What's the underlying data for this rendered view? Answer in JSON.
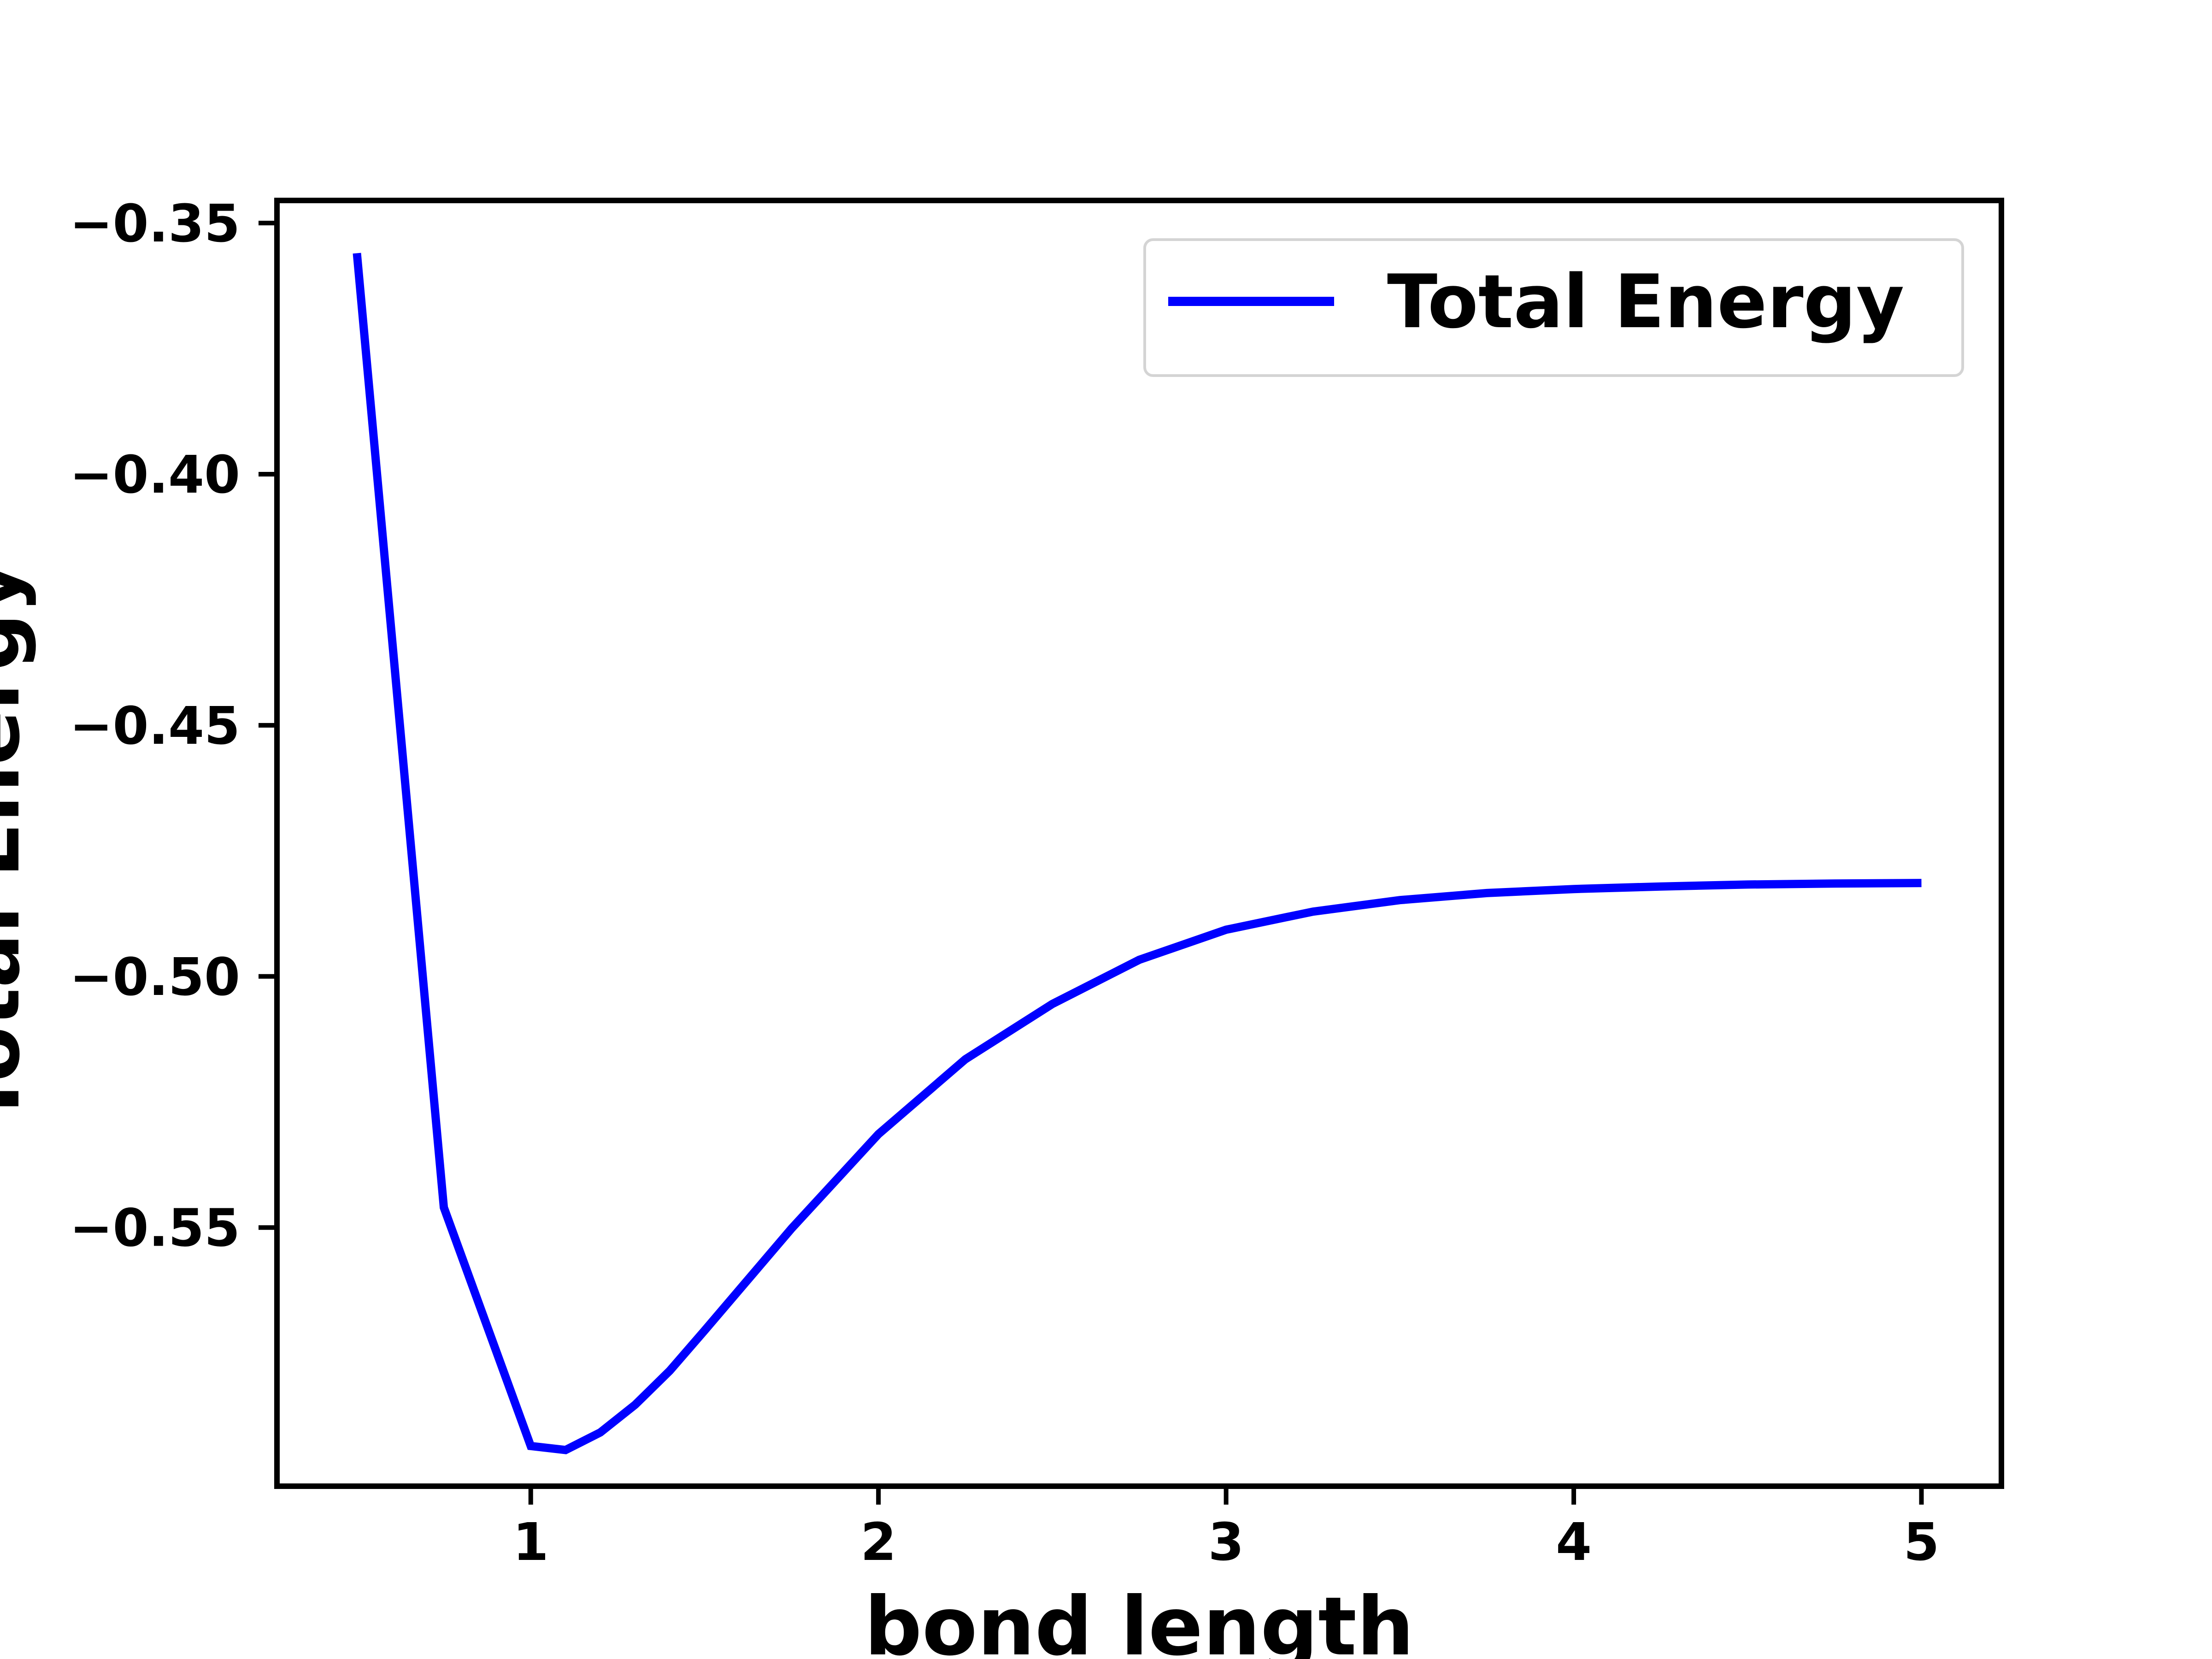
{
  "chart_data": {
    "type": "line",
    "xlabel": "bond length",
    "ylabel": "Total Energy",
    "xlim": [
      0.27,
      5.23
    ],
    "ylim": [
      -0.6015,
      -0.3455
    ],
    "x_ticks": [
      1,
      2,
      3,
      4,
      5
    ],
    "x_tick_labels": [
      "1",
      "2",
      "3",
      "4",
      "5"
    ],
    "y_ticks": [
      -0.35,
      -0.4,
      -0.45,
      -0.5,
      -0.55
    ],
    "y_tick_labels": [
      "−0.35",
      "−0.40",
      "−0.45",
      "−0.50",
      "−0.55"
    ],
    "legend": {
      "position": "upper-right",
      "entries": [
        "Total Energy"
      ]
    },
    "grid": false,
    "series": [
      {
        "name": "Total Energy",
        "color": "#0000ff",
        "x": [
          0.5,
          0.75,
          1.0,
          1.1,
          1.2,
          1.3,
          1.4,
          1.5,
          1.75,
          2.0,
          2.25,
          2.5,
          2.75,
          3.0,
          3.25,
          3.5,
          3.75,
          4.0,
          4.25,
          4.5,
          4.75,
          5.0
        ],
        "y": [
          -0.356,
          -0.546,
          -0.5935,
          -0.5943,
          -0.5908,
          -0.5853,
          -0.5785,
          -0.5705,
          -0.5502,
          -0.5314,
          -0.5165,
          -0.5055,
          -0.4967,
          -0.4907,
          -0.4871,
          -0.4848,
          -0.4834,
          -0.4826,
          -0.4821,
          -0.4817,
          -0.4815,
          -0.4814
        ]
      }
    ]
  }
}
